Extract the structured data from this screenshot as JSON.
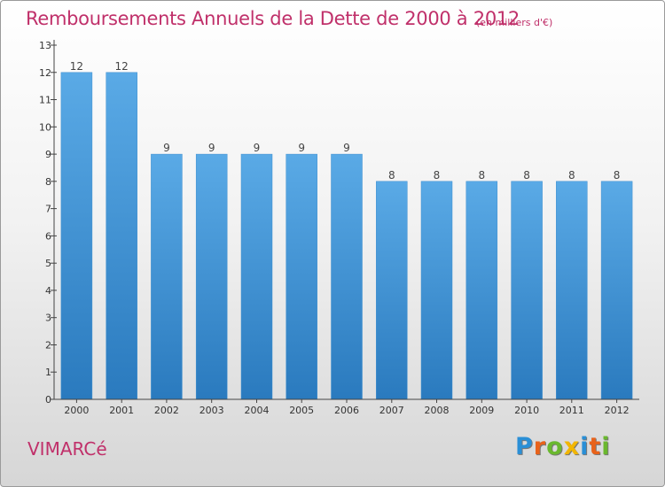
{
  "header": {
    "title": "Remboursements Annuels de la Dette de 2000 à 2012",
    "unit": "(en milliers d'€)"
  },
  "footer": {
    "commune": "VIMARCé",
    "brand": "Proxiti",
    "brand_letters": [
      {
        "char": "P",
        "color": "#2a8fd6"
      },
      {
        "char": "r",
        "color": "#e8621a"
      },
      {
        "char": "o",
        "color": "#6ab82e"
      },
      {
        "char": "x",
        "color": "#f2b600"
      },
      {
        "char": "i",
        "color": "#2a8fd6"
      },
      {
        "char": "t",
        "color": "#e8621a"
      },
      {
        "char": "i",
        "color": "#6ab82e"
      }
    ]
  },
  "colors": {
    "bar_light": "#5aaae6",
    "bar_dark": "#2a7abe",
    "axis": "#444444",
    "accent": "#c0306a"
  },
  "chart_data": {
    "type": "bar",
    "title": "Remboursements Annuels de la Dette de 2000 à 2012",
    "xlabel": "",
    "ylabel": "",
    "categories": [
      "2000",
      "2001",
      "2002",
      "2003",
      "2004",
      "2005",
      "2006",
      "2007",
      "2008",
      "2009",
      "2010",
      "2011",
      "2012"
    ],
    "values": [
      12,
      12,
      9,
      9,
      9,
      9,
      9,
      8,
      8,
      8,
      8,
      8,
      8
    ],
    "ylim": [
      0,
      13
    ],
    "yticks": [
      0,
      1,
      2,
      3,
      4,
      5,
      6,
      7,
      8,
      9,
      10,
      11,
      12,
      13
    ],
    "grid": false,
    "legend": "none"
  }
}
